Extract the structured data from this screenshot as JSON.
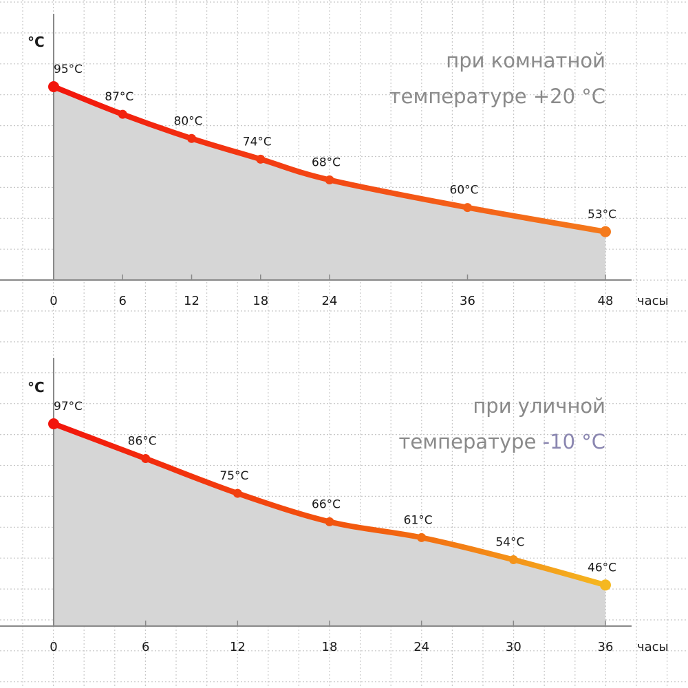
{
  "chart_data": [
    {
      "type": "area",
      "title_line1": "при комнатной",
      "title_line2": "температуре +20 °C",
      "ylabel": "°C",
      "xlabel": "часы",
      "x": [
        0,
        6,
        12,
        18,
        24,
        36,
        48
      ],
      "values": [
        95,
        87,
        80,
        74,
        68,
        60,
        53
      ],
      "data_labels": [
        "95°C",
        "87°C",
        "80°C",
        "74°C",
        "68°C",
        "60°C",
        "53°C"
      ],
      "xticks": [
        "0",
        "6",
        "12",
        "18",
        "24",
        "36",
        "48"
      ],
      "xlim": [
        0,
        48
      ],
      "ylim": [
        39,
        95
      ],
      "grid": true,
      "colors": {
        "start": "#f2150c",
        "end": "#f47a1c",
        "fill": "#d6d6d6"
      }
    },
    {
      "type": "area",
      "title_line1": "при уличной",
      "title_line2": "температуре ",
      "title_highlight": "-10 °C",
      "ylabel": "°C",
      "xlabel": "часы",
      "x": [
        0,
        6,
        12,
        18,
        24,
        30,
        36
      ],
      "values": [
        97,
        86,
        75,
        66,
        61,
        54,
        46
      ],
      "data_labels": [
        "97°C",
        "86°C",
        "75°C",
        "66°C",
        "61°C",
        "54°C",
        "46°C"
      ],
      "xticks": [
        "0",
        "6",
        "12",
        "18",
        "24",
        "30",
        "36"
      ],
      "xlim": [
        0,
        36
      ],
      "ylim": [
        33,
        97
      ],
      "grid": true,
      "colors": {
        "start": "#f2150c",
        "end": "#f5b820",
        "fill": "#d6d6d6",
        "highlight": "#8a86b0"
      }
    }
  ]
}
